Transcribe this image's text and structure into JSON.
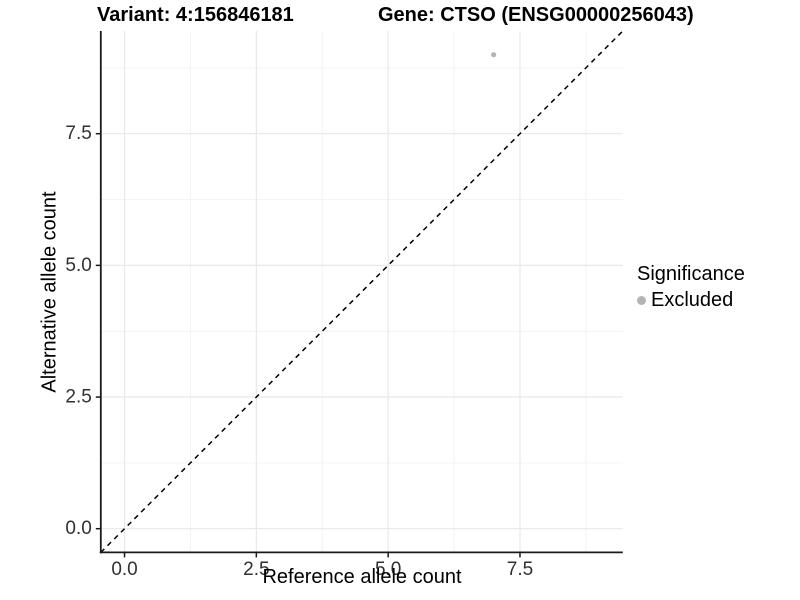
{
  "header": {
    "variant_title": "Variant: 4:156846181",
    "gene_title": "Gene: CTSO (ENSG00000256043)"
  },
  "chart_data": {
    "type": "scatter",
    "xlabel": "Reference allele count",
    "ylabel": "Alternative allele count",
    "xlim": [
      -0.45,
      9.45
    ],
    "ylim": [
      -0.45,
      9.45
    ],
    "x_ticks": [
      0.0,
      2.5,
      5.0,
      7.5
    ],
    "y_ticks": [
      0.0,
      2.5,
      5.0,
      7.5
    ],
    "x_minor_ticks": [
      1.25,
      3.75,
      6.25,
      8.75
    ],
    "y_minor_ticks": [
      1.25,
      3.75,
      6.25,
      8.75
    ],
    "grid": true,
    "reference_line": {
      "kind": "identity",
      "equation": "y = x",
      "style": "dashed",
      "color": "#000000"
    },
    "series": [
      {
        "name": "Excluded",
        "color": "#b4b4b4",
        "points": [
          {
            "x": 7,
            "y": 9
          }
        ]
      }
    ],
    "legend": {
      "title": "Significance",
      "position": "right",
      "items": [
        {
          "label": "Excluded",
          "color": "#b4b4b4"
        }
      ]
    }
  },
  "colors": {
    "background": "#ffffff",
    "grid_major": "#e8e8e8",
    "grid_minor": "#f3f3f3",
    "axis_line": "#1a1a1a",
    "tick_text": "#303030",
    "point": "#b4b4b4"
  }
}
